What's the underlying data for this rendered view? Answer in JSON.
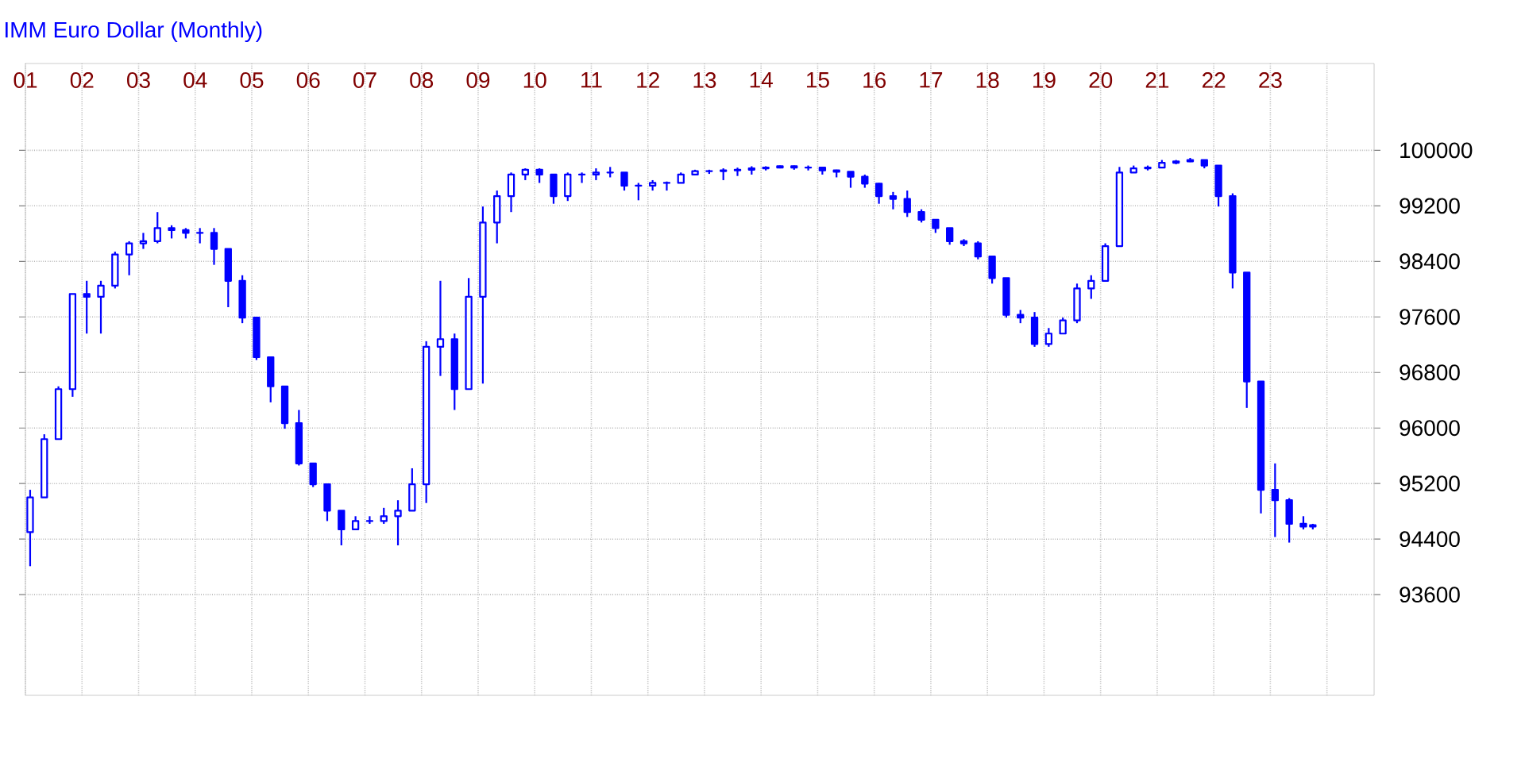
{
  "chart_data": {
    "type": "candlestick",
    "title": "IMM Euro Dollar (Monthly)",
    "color": "#0000ff",
    "grid": true,
    "x": [
      "2001-02",
      "2001-05",
      "2001-08",
      "2001-11",
      "2002-02",
      "2002-05",
      "2002-08",
      "2002-11",
      "2003-02",
      "2003-05",
      "2003-08",
      "2003-11",
      "2004-02",
      "2004-05",
      "2004-08",
      "2004-11",
      "2005-02",
      "2005-05",
      "2005-08",
      "2005-11",
      "2006-02",
      "2006-05",
      "2006-08",
      "2006-11",
      "2007-02",
      "2007-05",
      "2007-08",
      "2007-11",
      "2008-02",
      "2008-05",
      "2008-08",
      "2008-11",
      "2009-02",
      "2009-05",
      "2009-08",
      "2009-11",
      "2010-02",
      "2010-05",
      "2010-08",
      "2010-11",
      "2011-02",
      "2011-05",
      "2011-08",
      "2011-11",
      "2012-02",
      "2012-05",
      "2012-08",
      "2012-11",
      "2013-02",
      "2013-05",
      "2013-08",
      "2013-11",
      "2014-02",
      "2014-05",
      "2014-08",
      "2014-11",
      "2015-02",
      "2015-05",
      "2015-08",
      "2015-11",
      "2016-02",
      "2016-05",
      "2016-08",
      "2016-11",
      "2017-02",
      "2017-05",
      "2017-08",
      "2017-11",
      "2018-02",
      "2018-05",
      "2018-08",
      "2018-11",
      "2019-02",
      "2019-05",
      "2019-08",
      "2019-11",
      "2020-02",
      "2020-05",
      "2020-08",
      "2020-11",
      "2021-02",
      "2021-05",
      "2021-08",
      "2021-11",
      "2022-02",
      "2022-05",
      "2022-08",
      "2022-11",
      "2023-02",
      "2023-05",
      "2023-08",
      "2023-10"
    ],
    "ohlc": [
      [
        94500,
        95110,
        94010,
        95000
      ],
      [
        95000,
        95910,
        95000,
        95840
      ],
      [
        95840,
        96600,
        95840,
        96560
      ],
      [
        96560,
        97930,
        96450,
        97930
      ],
      [
        97930,
        98120,
        97360,
        97890
      ],
      [
        97890,
        98120,
        97360,
        98050
      ],
      [
        98050,
        98540,
        98010,
        98500
      ],
      [
        98500,
        98690,
        98200,
        98660
      ],
      [
        98660,
        98810,
        98580,
        98690
      ],
      [
        98690,
        99110,
        98660,
        98880
      ],
      [
        98880,
        98920,
        98730,
        98850
      ],
      [
        98850,
        98880,
        98730,
        98810
      ],
      [
        98810,
        98880,
        98660,
        98810
      ],
      [
        98810,
        98880,
        98350,
        98580
      ],
      [
        98580,
        98580,
        97740,
        98120
      ],
      [
        98120,
        98200,
        97510,
        97590
      ],
      [
        97590,
        97590,
        96980,
        97020
      ],
      [
        97020,
        97020,
        96370,
        96600
      ],
      [
        96600,
        96600,
        95990,
        96070
      ],
      [
        96070,
        96260,
        95460,
        95490
      ],
      [
        95490,
        95490,
        95150,
        95190
      ],
      [
        95190,
        95190,
        94660,
        94810
      ],
      [
        94810,
        94810,
        94310,
        94540
      ],
      [
        94540,
        94730,
        94540,
        94660
      ],
      [
        94660,
        94730,
        94620,
        94660
      ],
      [
        94660,
        94850,
        94620,
        94730
      ],
      [
        94730,
        94960,
        94310,
        94810
      ],
      [
        94810,
        95420,
        94810,
        95190
      ],
      [
        95190,
        97250,
        94920,
        97170
      ],
      [
        97170,
        98120,
        96750,
        97280
      ],
      [
        97280,
        97360,
        96260,
        96560
      ],
      [
        96560,
        98160,
        96560,
        97890
      ],
      [
        97890,
        99190,
        96640,
        98960
      ],
      [
        98960,
        99420,
        98660,
        99340
      ],
      [
        99340,
        99680,
        99110,
        99650
      ],
      [
        99650,
        99740,
        99570,
        99720
      ],
      [
        99720,
        99740,
        99530,
        99650
      ],
      [
        99650,
        99650,
        99230,
        99340
      ],
      [
        99340,
        99680,
        99270,
        99650
      ],
      [
        99650,
        99680,
        99530,
        99650
      ],
      [
        99650,
        99740,
        99570,
        99680
      ],
      [
        99680,
        99760,
        99610,
        99680
      ],
      [
        99680,
        99680,
        99420,
        99490
      ],
      [
        99490,
        99530,
        99280,
        99490
      ],
      [
        99490,
        99570,
        99420,
        99530
      ],
      [
        99530,
        99550,
        99420,
        99530
      ],
      [
        99530,
        99680,
        99530,
        99650
      ],
      [
        99650,
        99720,
        99650,
        99700
      ],
      [
        99700,
        99720,
        99660,
        99700
      ],
      [
        99700,
        99740,
        99570,
        99710
      ],
      [
        99710,
        99750,
        99630,
        99720
      ],
      [
        99720,
        99770,
        99650,
        99740
      ],
      [
        99740,
        99770,
        99710,
        99750
      ],
      [
        99750,
        99780,
        99740,
        99770
      ],
      [
        99770,
        99780,
        99720,
        99750
      ],
      [
        99750,
        99780,
        99710,
        99750
      ],
      [
        99750,
        99750,
        99650,
        99710
      ],
      [
        99710,
        99720,
        99610,
        99690
      ],
      [
        99690,
        99690,
        99460,
        99620
      ],
      [
        99620,
        99650,
        99460,
        99520
      ],
      [
        99520,
        99530,
        99230,
        99340
      ],
      [
        99340,
        99400,
        99150,
        99300
      ],
      [
        99300,
        99420,
        99040,
        99110
      ],
      [
        99110,
        99150,
        98960,
        99000
      ],
      [
        99000,
        99000,
        98810,
        98880
      ],
      [
        98880,
        98880,
        98640,
        98690
      ],
      [
        98690,
        98720,
        98620,
        98660
      ],
      [
        98660,
        98690,
        98430,
        98470
      ],
      [
        98470,
        98470,
        98080,
        98160
      ],
      [
        98160,
        98160,
        97590,
        97630
      ],
      [
        97630,
        97700,
        97510,
        97590
      ],
      [
        97590,
        97670,
        97170,
        97210
      ],
      [
        97210,
        97440,
        97170,
        97360
      ],
      [
        97360,
        97590,
        97360,
        97550
      ],
      [
        97550,
        98080,
        97510,
        98010
      ],
      [
        98010,
        98200,
        97860,
        98120
      ],
      [
        98120,
        98660,
        98120,
        98620
      ],
      [
        98620,
        99760,
        98620,
        99680
      ],
      [
        99680,
        99780,
        99680,
        99740
      ],
      [
        99740,
        99780,
        99710,
        99750
      ],
      [
        99750,
        99860,
        99750,
        99820
      ],
      [
        99820,
        99860,
        99800,
        99840
      ],
      [
        99840,
        99890,
        99830,
        99860
      ],
      [
        99860,
        99860,
        99740,
        99780
      ],
      [
        99780,
        99780,
        99190,
        99340
      ],
      [
        99340,
        99380,
        98010,
        98240
      ],
      [
        98240,
        98240,
        96290,
        96670
      ],
      [
        96670,
        96670,
        94770,
        95110
      ],
      [
        95110,
        95490,
        94430,
        94960
      ],
      [
        94960,
        94990,
        94350,
        94620
      ],
      [
        94620,
        94730,
        94540,
        94580
      ],
      [
        94600,
        94620,
        94540,
        94580
      ]
    ],
    "xlim": [
      "2001-01",
      "2024-11"
    ],
    "xticks": [
      {
        "value": "2001-01",
        "label": "01"
      },
      {
        "value": "2002-01",
        "label": "02"
      },
      {
        "value": "2003-01",
        "label": "03"
      },
      {
        "value": "2004-01",
        "label": "04"
      },
      {
        "value": "2005-01",
        "label": "05"
      },
      {
        "value": "2006-01",
        "label": "06"
      },
      {
        "value": "2007-01",
        "label": "07"
      },
      {
        "value": "2008-01",
        "label": "08"
      },
      {
        "value": "2009-01",
        "label": "09"
      },
      {
        "value": "2010-01",
        "label": "10"
      },
      {
        "value": "2011-01",
        "label": "11"
      },
      {
        "value": "2012-01",
        "label": "12"
      },
      {
        "value": "2013-01",
        "label": "13"
      },
      {
        "value": "2014-01",
        "label": "14"
      },
      {
        "value": "2015-01",
        "label": "15"
      },
      {
        "value": "2016-01",
        "label": "16"
      },
      {
        "value": "2017-01",
        "label": "17"
      },
      {
        "value": "2018-01",
        "label": "18"
      },
      {
        "value": "2019-01",
        "label": "19"
      },
      {
        "value": "2020-01",
        "label": "20"
      },
      {
        "value": "2021-01",
        "label": "21"
      },
      {
        "value": "2022-01",
        "label": "22"
      },
      {
        "value": "2023-01",
        "label": "23"
      },
      {
        "value": "2024-01",
        "label": null
      }
    ],
    "ylim": [
      92150,
      101250
    ],
    "yticks": [
      93600,
      94400,
      95200,
      96000,
      96800,
      97600,
      98400,
      99200,
      100000
    ]
  }
}
